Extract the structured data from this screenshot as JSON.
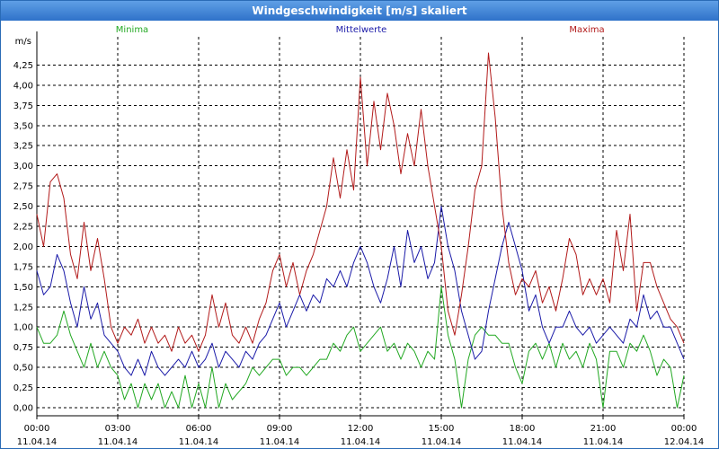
{
  "window": {
    "title": "Windgeschwindigkeit [m/s] skaliert"
  },
  "chart_data": {
    "type": "line",
    "title": "Windgeschwindigkeit [m/s] skaliert",
    "ylabel": "m/s",
    "xlabel": "",
    "ylim": [
      -0.1,
      4.6
    ],
    "xlim": [
      0,
      24
    ],
    "grid": true,
    "y_ticks": [
      0,
      0.25,
      0.5,
      0.75,
      1.0,
      1.25,
      1.5,
      1.75,
      2.0,
      2.25,
      2.5,
      2.75,
      3.0,
      3.25,
      3.5,
      3.75,
      4.0,
      4.25
    ],
    "y_tick_labels": [
      "0,00",
      "0,25",
      "0,50",
      "0,75",
      "1,00",
      "1,25",
      "1,50",
      "1,75",
      "2,00",
      "2,25",
      "2,50",
      "2,75",
      "3,00",
      "3,25",
      "3,50",
      "3,75",
      "4,00",
      "4,25"
    ],
    "x_ticks": [
      {
        "x": 0,
        "time": "00:00",
        "date": "11.04.14"
      },
      {
        "x": 3,
        "time": "03:00",
        "date": "11.04.14"
      },
      {
        "x": 6,
        "time": "06:00",
        "date": "11.04.14"
      },
      {
        "x": 9,
        "time": "09:00",
        "date": "11.04.14"
      },
      {
        "x": 12,
        "time": "12:00",
        "date": "11.04.14"
      },
      {
        "x": 15,
        "time": "15:00",
        "date": "11.04.14"
      },
      {
        "x": 18,
        "time": "18:00",
        "date": "11.04.14"
      },
      {
        "x": 21,
        "time": "21:00",
        "date": "11.04.14"
      },
      {
        "x": 24,
        "time": "00:00",
        "date": "12.04.14"
      }
    ],
    "legend": {
      "placement": "top"
    },
    "series": [
      {
        "name": "Minima",
        "color": "#22a822",
        "x": [
          0,
          0.25,
          0.5,
          0.75,
          1,
          1.25,
          1.5,
          1.75,
          2,
          2.25,
          2.5,
          2.75,
          3,
          3.25,
          3.5,
          3.75,
          4,
          4.25,
          4.5,
          4.75,
          5,
          5.25,
          5.5,
          5.75,
          6,
          6.25,
          6.5,
          6.75,
          7,
          7.25,
          7.5,
          7.75,
          8,
          8.25,
          8.5,
          8.75,
          9,
          9.25,
          9.5,
          9.75,
          10,
          10.25,
          10.5,
          10.75,
          11,
          11.25,
          11.5,
          11.75,
          12,
          12.25,
          12.5,
          12.75,
          13,
          13.25,
          13.5,
          13.75,
          14,
          14.25,
          14.5,
          14.75,
          15,
          15.25,
          15.5,
          15.75,
          16,
          16.25,
          16.5,
          16.75,
          17,
          17.25,
          17.5,
          17.75,
          18,
          18.25,
          18.5,
          18.75,
          19,
          19.25,
          19.5,
          19.75,
          20,
          20.25,
          20.5,
          20.75,
          21,
          21.25,
          21.5,
          21.75,
          22,
          22.25,
          22.5,
          22.75,
          23,
          23.25,
          23.5,
          23.75,
          24
        ],
        "values": [
          1.0,
          0.8,
          0.8,
          0.9,
          1.2,
          0.9,
          0.7,
          0.5,
          0.8,
          0.5,
          0.7,
          0.5,
          0.4,
          0.1,
          0.3,
          0.0,
          0.3,
          0.1,
          0.3,
          0.0,
          0.2,
          0.0,
          0.4,
          0.0,
          0.3,
          0.0,
          0.5,
          0.0,
          0.3,
          0.1,
          0.2,
          0.3,
          0.5,
          0.4,
          0.5,
          0.6,
          0.6,
          0.4,
          0.5,
          0.5,
          0.4,
          0.5,
          0.6,
          0.6,
          0.8,
          0.7,
          0.9,
          1.0,
          0.7,
          0.8,
          0.9,
          1.0,
          0.7,
          0.8,
          0.6,
          0.8,
          0.7,
          0.5,
          0.7,
          0.6,
          1.5,
          0.9,
          0.6,
          0.0,
          0.6,
          0.9,
          1.0,
          0.9,
          0.9,
          0.8,
          0.8,
          0.5,
          0.3,
          0.7,
          0.8,
          0.6,
          0.8,
          0.5,
          0.8,
          0.6,
          0.7,
          0.5,
          0.8,
          0.6,
          0.0,
          0.7,
          0.7,
          0.5,
          0.8,
          0.7,
          0.9,
          0.7,
          0.4,
          0.6,
          0.5,
          0.0,
          0.4
        ]
      },
      {
        "name": "Mittelwerte",
        "color": "#1a1aa8",
        "x": [
          0,
          0.25,
          0.5,
          0.75,
          1,
          1.25,
          1.5,
          1.75,
          2,
          2.25,
          2.5,
          2.75,
          3,
          3.25,
          3.5,
          3.75,
          4,
          4.25,
          4.5,
          4.75,
          5,
          5.25,
          5.5,
          5.75,
          6,
          6.25,
          6.5,
          6.75,
          7,
          7.25,
          7.5,
          7.75,
          8,
          8.25,
          8.5,
          8.75,
          9,
          9.25,
          9.5,
          9.75,
          10,
          10.25,
          10.5,
          10.75,
          11,
          11.25,
          11.5,
          11.75,
          12,
          12.25,
          12.5,
          12.75,
          13,
          13.25,
          13.5,
          13.75,
          14,
          14.25,
          14.5,
          14.75,
          15,
          15.25,
          15.5,
          15.75,
          16,
          16.25,
          16.5,
          16.75,
          17,
          17.25,
          17.5,
          17.75,
          18,
          18.25,
          18.5,
          18.75,
          19,
          19.25,
          19.5,
          19.75,
          20,
          20.25,
          20.5,
          20.75,
          21,
          21.25,
          21.5,
          21.75,
          22,
          22.25,
          22.5,
          22.75,
          23,
          23.25,
          23.5,
          23.75,
          24
        ],
        "values": [
          1.7,
          1.4,
          1.5,
          1.9,
          1.7,
          1.3,
          1.0,
          1.5,
          1.1,
          1.3,
          0.9,
          0.8,
          0.7,
          0.5,
          0.4,
          0.6,
          0.4,
          0.7,
          0.5,
          0.4,
          0.5,
          0.6,
          0.5,
          0.7,
          0.5,
          0.6,
          0.8,
          0.5,
          0.7,
          0.6,
          0.5,
          0.7,
          0.6,
          0.8,
          0.9,
          1.1,
          1.3,
          1.0,
          1.2,
          1.4,
          1.2,
          1.4,
          1.3,
          1.6,
          1.5,
          1.7,
          1.5,
          1.8,
          2.0,
          1.8,
          1.5,
          1.3,
          1.6,
          2.0,
          1.5,
          2.2,
          1.8,
          2.0,
          1.6,
          1.8,
          2.5,
          2.0,
          1.7,
          1.2,
          0.9,
          0.6,
          0.7,
          1.2,
          1.6,
          2.0,
          2.3,
          2.0,
          1.7,
          1.2,
          1.4,
          1.0,
          0.8,
          1.0,
          1.0,
          1.2,
          1.0,
          0.9,
          1.0,
          0.8,
          0.9,
          1.0,
          0.9,
          0.8,
          1.1,
          1.0,
          1.4,
          1.1,
          1.2,
          1.0,
          1.0,
          0.8,
          0.6
        ]
      },
      {
        "name": "Maxima",
        "color": "#b21a1a",
        "x": [
          0,
          0.25,
          0.5,
          0.75,
          1,
          1.25,
          1.5,
          1.75,
          2,
          2.25,
          2.5,
          2.75,
          3,
          3.25,
          3.5,
          3.75,
          4,
          4.25,
          4.5,
          4.75,
          5,
          5.25,
          5.5,
          5.75,
          6,
          6.25,
          6.5,
          6.75,
          7,
          7.25,
          7.5,
          7.75,
          8,
          8.25,
          8.5,
          8.75,
          9,
          9.25,
          9.5,
          9.75,
          10,
          10.25,
          10.5,
          10.75,
          11,
          11.25,
          11.5,
          11.75,
          12,
          12.25,
          12.5,
          12.75,
          13,
          13.25,
          13.5,
          13.75,
          14,
          14.25,
          14.5,
          14.75,
          15,
          15.25,
          15.5,
          15.75,
          16,
          16.25,
          16.5,
          16.75,
          17,
          17.25,
          17.5,
          17.75,
          18,
          18.25,
          18.5,
          18.75,
          19,
          19.25,
          19.5,
          19.75,
          20,
          20.25,
          20.5,
          20.75,
          21,
          21.25,
          21.5,
          21.75,
          22,
          22.25,
          22.5,
          22.75,
          23,
          23.25,
          23.5,
          23.75,
          24
        ],
        "values": [
          2.4,
          2.0,
          2.8,
          2.9,
          2.6,
          1.9,
          1.6,
          2.3,
          1.7,
          2.1,
          1.6,
          1.0,
          0.8,
          1.0,
          0.9,
          1.1,
          0.8,
          1.0,
          0.8,
          0.9,
          0.7,
          1.0,
          0.8,
          0.9,
          0.7,
          0.9,
          1.4,
          1.0,
          1.3,
          0.9,
          0.8,
          1.0,
          0.8,
          1.1,
          1.3,
          1.7,
          1.9,
          1.5,
          1.8,
          1.4,
          1.7,
          1.9,
          2.2,
          2.5,
          3.1,
          2.6,
          3.2,
          2.7,
          4.1,
          3.0,
          3.8,
          3.2,
          3.9,
          3.5,
          2.9,
          3.4,
          3.0,
          3.7,
          3.0,
          2.5,
          2.0,
          1.2,
          0.9,
          1.4,
          2.0,
          2.7,
          3.0,
          4.4,
          3.6,
          2.5,
          1.8,
          1.4,
          1.6,
          1.5,
          1.7,
          1.3,
          1.5,
          1.2,
          1.6,
          2.1,
          1.9,
          1.4,
          1.6,
          1.4,
          1.6,
          1.3,
          2.2,
          1.7,
          2.4,
          1.2,
          1.8,
          1.8,
          1.5,
          1.3,
          1.1,
          1.0,
          0.8
        ]
      }
    ]
  }
}
